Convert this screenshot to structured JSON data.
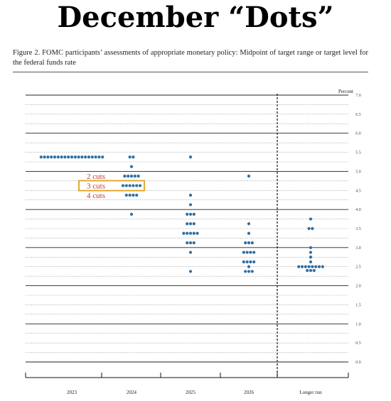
{
  "page": {
    "headline": "December “Dots”",
    "caption": "Figure 2.  FOMC participants’ assessments of appropriate monetary policy:  Midpoint of target range or target level for the federal funds rate"
  },
  "annotations": [
    {
      "label": "2 cuts",
      "y": 4.875,
      "color": "#c0392b"
    },
    {
      "label": "3 cuts",
      "y": 4.625,
      "color": "#c0392b",
      "boxed": true,
      "box_color": "#e0a020"
    },
    {
      "label": "4 cuts",
      "y": 4.375,
      "color": "#c0392b"
    }
  ],
  "chart_data": {
    "type": "scatter",
    "title": "",
    "ylabel": "Percent",
    "xlabel": "",
    "ylim": [
      0,
      7.0
    ],
    "yticks": [
      "0.0",
      "0.5",
      "1.0",
      "1.5",
      "2.0",
      "2.5",
      "3.0",
      "3.5",
      "4.0",
      "4.5",
      "5.0",
      "5.5",
      "6.0",
      "6.5",
      "7.0"
    ],
    "categories": [
      "2023",
      "2024",
      "2025",
      "2026",
      "Longer run"
    ],
    "grid": true,
    "dot_color": "#2e6fa3",
    "series": [
      {
        "category": "2023",
        "points": [
          {
            "y": 5.375,
            "count": 19
          }
        ]
      },
      {
        "category": "2024",
        "points": [
          {
            "y": 5.375,
            "count": 2
          },
          {
            "y": 5.125,
            "count": 1
          },
          {
            "y": 4.875,
            "count": 5
          },
          {
            "y": 4.625,
            "count": 6
          },
          {
            "y": 4.375,
            "count": 4
          },
          {
            "y": 3.875,
            "count": 1
          }
        ]
      },
      {
        "category": "2025",
        "points": [
          {
            "y": 5.375,
            "count": 1
          },
          {
            "y": 4.375,
            "count": 1
          },
          {
            "y": 4.125,
            "count": 1
          },
          {
            "y": 3.875,
            "count": 3
          },
          {
            "y": 3.625,
            "count": 3
          },
          {
            "y": 3.375,
            "count": 5
          },
          {
            "y": 3.125,
            "count": 3
          },
          {
            "y": 2.875,
            "count": 1
          },
          {
            "y": 2.375,
            "count": 1
          }
        ]
      },
      {
        "category": "2026",
        "points": [
          {
            "y": 4.875,
            "count": 1
          },
          {
            "y": 3.625,
            "count": 1
          },
          {
            "y": 3.375,
            "count": 1
          },
          {
            "y": 3.125,
            "count": 3
          },
          {
            "y": 2.875,
            "count": 4
          },
          {
            "y": 2.625,
            "count": 4
          },
          {
            "y": 2.5,
            "count": 1
          },
          {
            "y": 2.375,
            "count": 3
          }
        ]
      },
      {
        "category": "Longer run",
        "points": [
          {
            "y": 3.75,
            "count": 1
          },
          {
            "y": 3.5,
            "count": 2
          },
          {
            "y": 3.0,
            "count": 1
          },
          {
            "y": 2.875,
            "count": 1
          },
          {
            "y": 2.75,
            "count": 1
          },
          {
            "y": 2.625,
            "count": 1
          },
          {
            "y": 2.5,
            "count": 8
          },
          {
            "y": 2.4,
            "count": 3
          }
        ]
      }
    ]
  }
}
